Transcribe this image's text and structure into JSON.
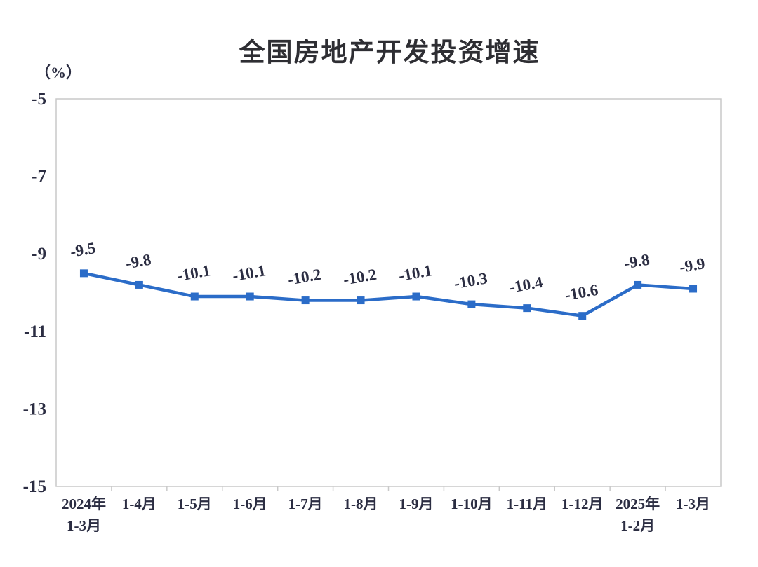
{
  "header": {
    "title": "全国房地产开发投资增速",
    "unit_label": "（%）"
  },
  "chart_data": {
    "type": "line",
    "title": "全国房地产开发投资增速",
    "ylabel": "（%）",
    "categories": [
      [
        "2024年",
        "1-3月"
      ],
      [
        "1-4月"
      ],
      [
        "1-5月"
      ],
      [
        "1-6月"
      ],
      [
        "1-7月"
      ],
      [
        "1-8月"
      ],
      [
        "1-9月"
      ],
      [
        "1-10月"
      ],
      [
        "1-11月"
      ],
      [
        "1-12月"
      ],
      [
        "2025年",
        "1-2月"
      ],
      [
        "1-3月"
      ]
    ],
    "values": [
      -9.5,
      -9.8,
      -10.1,
      -10.1,
      -10.2,
      -10.2,
      -10.1,
      -10.3,
      -10.4,
      -10.6,
      -9.8,
      -9.9
    ],
    "data_labels": [
      "-9.5",
      "-9.8",
      "-10.1",
      "-10.1",
      "-10.2",
      "-10.2",
      "-10.1",
      "-10.3",
      "-10.4",
      "-10.6",
      "-9.8",
      "-9.9"
    ],
    "yticks": [
      "-5",
      "-7",
      "-9",
      "-11",
      "-13",
      "-15"
    ],
    "ytick_values": [
      -5,
      -7,
      -9,
      -11,
      -13,
      -15
    ],
    "ylim": [
      -15,
      -5
    ],
    "grid": false,
    "legend": "none",
    "colors": {
      "line": "#2b6cc8",
      "marker": "#2b6cc8",
      "axis_text": "#2b2d42",
      "data_label_text": "#2b2d42",
      "plot_border": "#c9c9c9",
      "background": "#ffffff"
    }
  }
}
